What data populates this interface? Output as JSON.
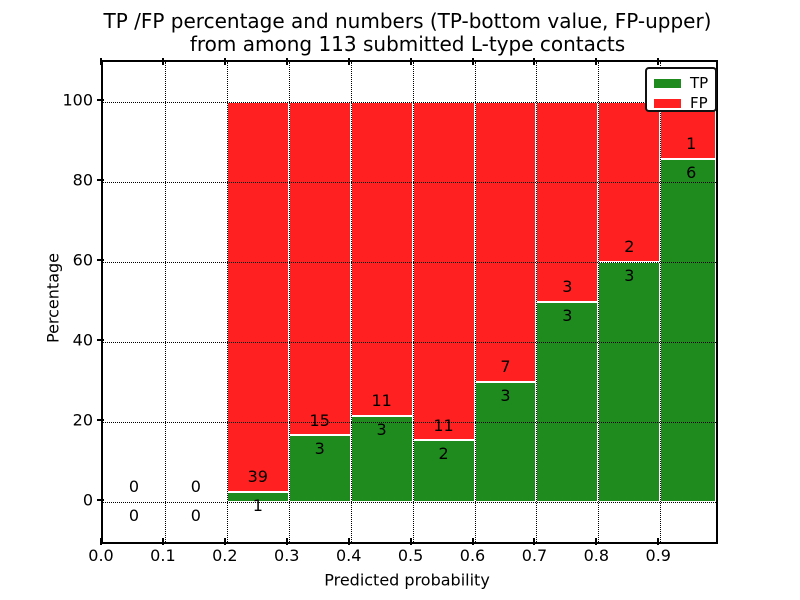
{
  "chart_data": {
    "type": "bar",
    "stacked_percentage": true,
    "title_line1": "TP /FP percentage and numbers (TP-bottom value, FP-upper)",
    "title_line2": "from among 113 submitted L-type contacts",
    "xlabel": "Predicted probability",
    "ylabel": "Percentage",
    "xlim": [
      0.0,
      0.99
    ],
    "ylim": [
      -10,
      110
    ],
    "x_tick_values": [
      0.0,
      0.1,
      0.2,
      0.3,
      0.4,
      0.5,
      0.6,
      0.7,
      0.8,
      0.9
    ],
    "x_tick_labels": [
      "0.0",
      "0.1",
      "0.2",
      "0.3",
      "0.4",
      "0.5",
      "0.6",
      "0.7",
      "0.8",
      "0.9"
    ],
    "y_tick_values": [
      0,
      20,
      40,
      60,
      80,
      100
    ],
    "y_tick_labels": [
      "0",
      "20",
      "40",
      "60",
      "80",
      "100"
    ],
    "grid": "dotted-both-axes-above-bars",
    "legend_position": "upper-right",
    "legend": [
      {
        "label": "TP",
        "color": "#1f8b1f"
      },
      {
        "label": "FP",
        "color": "#ff2121"
      }
    ],
    "total_contacts": 113,
    "note": "TP count labeled below segment boundary, FP count above; bars stacked to 100%",
    "bins": [
      {
        "x0": 0.0,
        "x1": 0.1,
        "tp": 0,
        "fp": 0
      },
      {
        "x0": 0.1,
        "x1": 0.2,
        "tp": 0,
        "fp": 0
      },
      {
        "x0": 0.2,
        "x1": 0.3,
        "tp": 1,
        "fp": 39
      },
      {
        "x0": 0.3,
        "x1": 0.4,
        "tp": 3,
        "fp": 15
      },
      {
        "x0": 0.4,
        "x1": 0.5,
        "tp": 3,
        "fp": 11
      },
      {
        "x0": 0.5,
        "x1": 0.6,
        "tp": 2,
        "fp": 11
      },
      {
        "x0": 0.6,
        "x1": 0.7,
        "tp": 3,
        "fp": 7
      },
      {
        "x0": 0.7,
        "x1": 0.8,
        "tp": 3,
        "fp": 3
      },
      {
        "x0": 0.8,
        "x1": 0.9,
        "tp": 3,
        "fp": 2
      },
      {
        "x0": 0.9,
        "x1": 0.99,
        "tp": 6,
        "fp": 1
      }
    ]
  },
  "colors": {
    "tp_green": "#1f8b1f",
    "fp_red": "#ff2121",
    "background": "#ffffff",
    "axis": "#000000"
  }
}
